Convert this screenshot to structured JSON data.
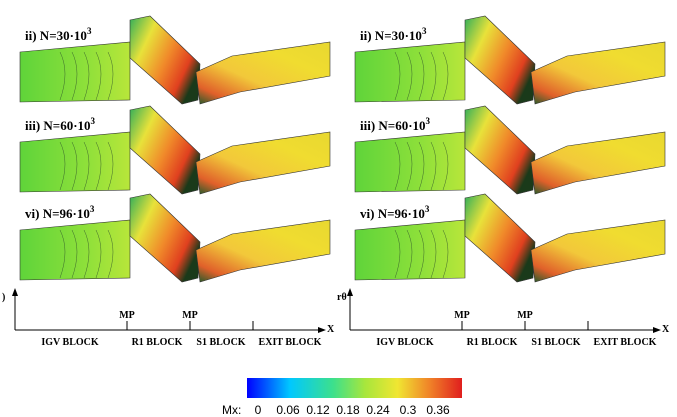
{
  "columns": [
    {
      "panels": [
        {
          "label": "ii) N=30·10",
          "exponent": "3"
        },
        {
          "label": "iii) N=60·10",
          "exponent": "3"
        },
        {
          "label": "vi) N=96·10",
          "exponent": "3"
        }
      ],
      "axis": {
        "y_label": ")",
        "x_label": "X",
        "markers": [
          "MP",
          "MP"
        ],
        "blocks": [
          "IGV BLOCK",
          "R1 BLOCK",
          "S1 BLOCK",
          "EXIT BLOCK"
        ]
      }
    },
    {
      "panels": [
        {
          "label": "ii) N=30·10",
          "exponent": "3"
        },
        {
          "label": "iii) N=60·10",
          "exponent": "3"
        },
        {
          "label": "vi) N=96·10",
          "exponent": "3"
        }
      ],
      "axis": {
        "y_label": "rθ",
        "x_label": "X",
        "markers": [
          "MP",
          "MP"
        ],
        "blocks": [
          "IGV BLOCK",
          "R1 BLOCK",
          "S1 BLOCK",
          "EXIT BLOCK"
        ]
      }
    }
  ],
  "colorbar": {
    "label": "Mx:",
    "ticks": [
      0,
      0.06,
      0.12,
      0.18,
      0.24,
      0.3,
      0.36
    ]
  }
}
